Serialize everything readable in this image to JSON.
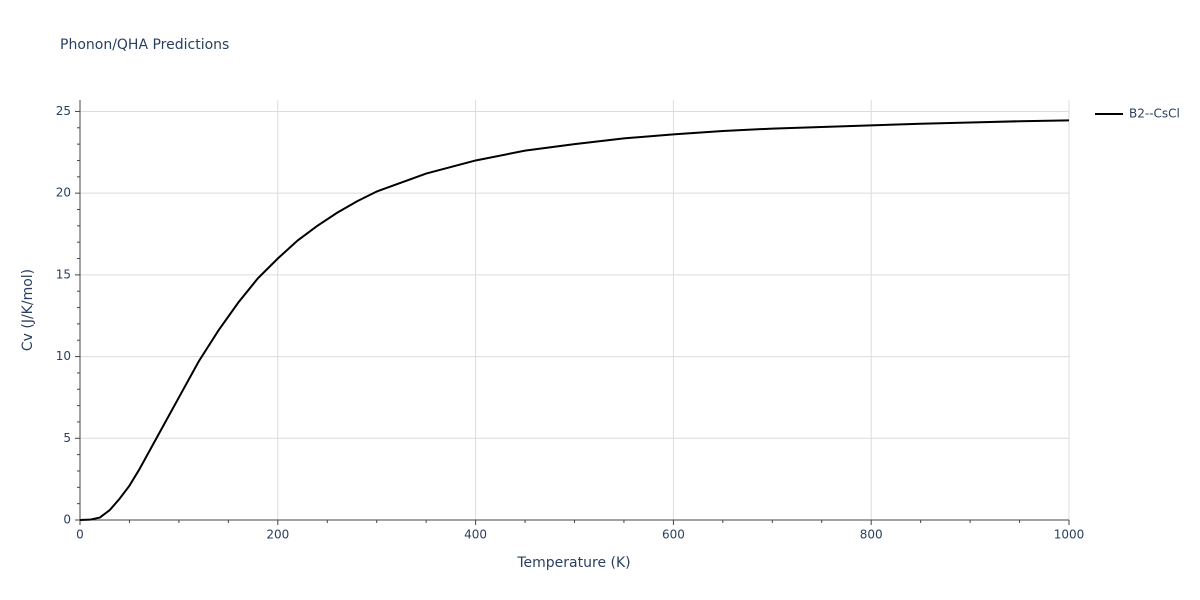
{
  "chart_data": {
    "type": "line",
    "title": "Phonon/QHA Predictions",
    "x_label": "Temperature (K)",
    "y_label": "Cv (J/K/mol)",
    "x": [
      0,
      10,
      20,
      30,
      40,
      50,
      60,
      70,
      80,
      90,
      100,
      120,
      140,
      160,
      180,
      200,
      220,
      240,
      260,
      280,
      300,
      350,
      400,
      450,
      500,
      550,
      600,
      650,
      700,
      750,
      800,
      850,
      900,
      950,
      1000
    ],
    "series": [
      {
        "name": "B2--CsCl",
        "color": "#000000",
        "values": [
          0,
          0.02,
          0.15,
          0.6,
          1.3,
          2.1,
          3.1,
          4.2,
          5.3,
          6.4,
          7.5,
          9.7,
          11.6,
          13.3,
          14.8,
          16.0,
          17.1,
          18.0,
          18.8,
          19.5,
          20.1,
          21.2,
          22.0,
          22.6,
          23.0,
          23.35,
          23.6,
          23.8,
          23.95,
          24.05,
          24.15,
          24.25,
          24.32,
          24.4,
          24.45
        ]
      }
    ],
    "xlim": [
      0,
      1000
    ],
    "xticks": [
      0,
      200,
      400,
      600,
      800,
      1000
    ],
    "xminorticks": [
      50,
      100,
      150,
      250,
      300,
      350,
      450,
      500,
      550,
      650,
      700,
      750,
      850,
      900,
      950
    ],
    "ylim": [
      0,
      25.7
    ],
    "yticks": [
      0,
      5,
      10,
      15,
      20,
      25
    ],
    "yminorticks": [
      1,
      2,
      3,
      4,
      6,
      7,
      8,
      9,
      11,
      12,
      13,
      14,
      16,
      17,
      18,
      19,
      21,
      22,
      23,
      24
    ],
    "grid": true,
    "legend": "right"
  }
}
